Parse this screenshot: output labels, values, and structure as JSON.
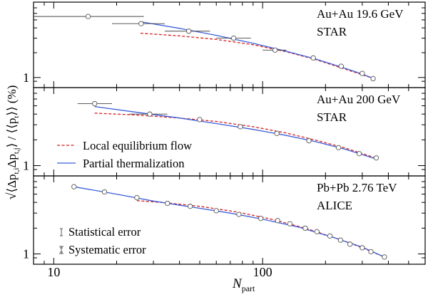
{
  "chart_data": {
    "type": "scatter",
    "x_label_main": "N",
    "x_label_sub": "part",
    "y_label": "√⟨Δp_{t,i}Δp_{t,j}⟩ / ⟨⟨p_t⟩⟩ (%)",
    "y_label_parts": {
      "sqrt": "√",
      "open": "⟨",
      "delta1": "Δp",
      "sub1": "t,i",
      "delta2": "Δp",
      "sub2": "t,j",
      "close": "⟩",
      "slash": " / ",
      "mean": "⟨⟨p",
      "sub3": "t",
      "mean_close": "⟩⟩",
      "unit": "(%)"
    },
    "x_scale": "log",
    "xlim": [
      8,
      600
    ],
    "x_ticks": [
      {
        "value": 10,
        "label": "10"
      },
      {
        "value": 100,
        "label": "100"
      }
    ],
    "y_scale": "log",
    "legend": {
      "flow": "Local equilibrium flow",
      "therm": "Partial thermalization",
      "stat": "Statistical error",
      "syst": "Systematic error"
    },
    "panels": [
      {
        "label1": "Au+Au 19.6 GeV",
        "label2": "STAR",
        "ylim": [
          0.85,
          7.0
        ],
        "y_tick_label": "1",
        "points": [
          {
            "x": 14.6,
            "y": 5.5,
            "xlo": 8.0,
            "xhi": 27.0
          },
          {
            "x": 26.2,
            "y": 4.5,
            "xlo": 19.0,
            "xhi": 34.0
          },
          {
            "x": 44.3,
            "y": 3.65,
            "xlo": 34.0,
            "xhi": 56.0
          },
          {
            "x": 72.7,
            "y": 3.0,
            "xlo": 60.0,
            "xhi": 88.0
          },
          {
            "x": 114.7,
            "y": 2.15,
            "xlo": 100.0,
            "xhi": 130.0
          },
          {
            "x": 174.8,
            "y": 1.73
          },
          {
            "x": 237.8,
            "y": 1.37
          },
          {
            "x": 300.0,
            "y": 1.12
          },
          {
            "x": 338.0,
            "y": 0.97
          }
        ],
        "therm": [
          [
            26,
            4.75
          ],
          [
            40,
            3.95
          ],
          [
            60,
            3.25
          ],
          [
            90,
            2.6
          ],
          [
            130,
            2.08
          ],
          [
            180,
            1.67
          ],
          [
            240,
            1.33
          ],
          [
            300,
            1.1
          ],
          [
            340,
            0.97
          ]
        ],
        "flow": [
          [
            26,
            3.45
          ],
          [
            40,
            3.2
          ],
          [
            60,
            2.9
          ],
          [
            90,
            2.5
          ],
          [
            130,
            2.05
          ],
          [
            180,
            1.65
          ],
          [
            240,
            1.3
          ],
          [
            300,
            1.08
          ],
          [
            340,
            0.97
          ]
        ]
      },
      {
        "label1": "Au+Au 200 GeV",
        "label2": "STAR",
        "ylim": [
          0.85,
          7.0
        ],
        "y_tick_label": "1",
        "points": [
          {
            "x": 15.7,
            "y": 5.3,
            "xlo": 13.0,
            "xhi": 19.0
          },
          {
            "x": 28.8,
            "y": 4.0,
            "xlo": 23.0,
            "xhi": 35.0
          },
          {
            "x": 49.9,
            "y": 3.45
          },
          {
            "x": 78.2,
            "y": 2.85
          },
          {
            "x": 117.0,
            "y": 2.38
          },
          {
            "x": 166.6,
            "y": 1.95
          },
          {
            "x": 231.0,
            "y": 1.62
          },
          {
            "x": 290.0,
            "y": 1.38
          },
          {
            "x": 350.0,
            "y": 1.23
          }
        ],
        "therm": [
          [
            15.7,
            4.9
          ],
          [
            25,
            4.2
          ],
          [
            40,
            3.6
          ],
          [
            60,
            3.1
          ],
          [
            90,
            2.65
          ],
          [
            130,
            2.25
          ],
          [
            180,
            1.9
          ],
          [
            250,
            1.55
          ],
          [
            340,
            1.22
          ]
        ],
        "flow": [
          [
            15.7,
            4.1
          ],
          [
            25,
            3.9
          ],
          [
            40,
            3.6
          ],
          [
            60,
            3.28
          ],
          [
            90,
            2.85
          ],
          [
            130,
            2.4
          ],
          [
            180,
            1.98
          ],
          [
            250,
            1.6
          ],
          [
            340,
            1.25
          ]
        ]
      },
      {
        "label1": "Pb+Pb 2.76 TeV",
        "label2": "ALICE",
        "ylim": [
          0.85,
          7.0
        ],
        "y_tick_label": "1",
        "points": [
          {
            "x": 12.5,
            "y": 6.1
          },
          {
            "x": 17.5,
            "y": 5.3
          },
          {
            "x": 25.0,
            "y": 4.55
          },
          {
            "x": 35.0,
            "y": 3.9
          },
          {
            "x": 45.0,
            "y": 3.6
          },
          {
            "x": 60.0,
            "y": 3.2
          },
          {
            "x": 77.0,
            "y": 2.9
          },
          {
            "x": 98.0,
            "y": 2.6
          },
          {
            "x": 118.0,
            "y": 2.45
          },
          {
            "x": 135.0,
            "y": 2.25
          },
          {
            "x": 160.0,
            "y": 2.0
          },
          {
            "x": 182.0,
            "y": 1.82
          },
          {
            "x": 210.0,
            "y": 1.62
          },
          {
            "x": 236.0,
            "y": 1.45
          },
          {
            "x": 262.0,
            "y": 1.3
          },
          {
            "x": 300.0,
            "y": 1.18
          },
          {
            "x": 330.0,
            "y": 1.06
          },
          {
            "x": 383.0,
            "y": 0.92
          }
        ],
        "therm": [
          [
            12.5,
            6.1
          ],
          [
            20,
            5.0
          ],
          [
            30,
            4.15
          ],
          [
            45,
            3.55
          ],
          [
            70,
            3.0
          ],
          [
            100,
            2.55
          ],
          [
            150,
            2.05
          ],
          [
            220,
            1.55
          ],
          [
            300,
            1.2
          ],
          [
            383,
            0.92
          ]
        ],
        "flow": [
          [
            25,
            4.2
          ],
          [
            35,
            3.95
          ],
          [
            50,
            3.6
          ],
          [
            75,
            3.1
          ],
          [
            110,
            2.55
          ],
          [
            160,
            2.0
          ],
          [
            230,
            1.5
          ],
          [
            300,
            1.18
          ],
          [
            383,
            0.92
          ]
        ]
      }
    ]
  }
}
